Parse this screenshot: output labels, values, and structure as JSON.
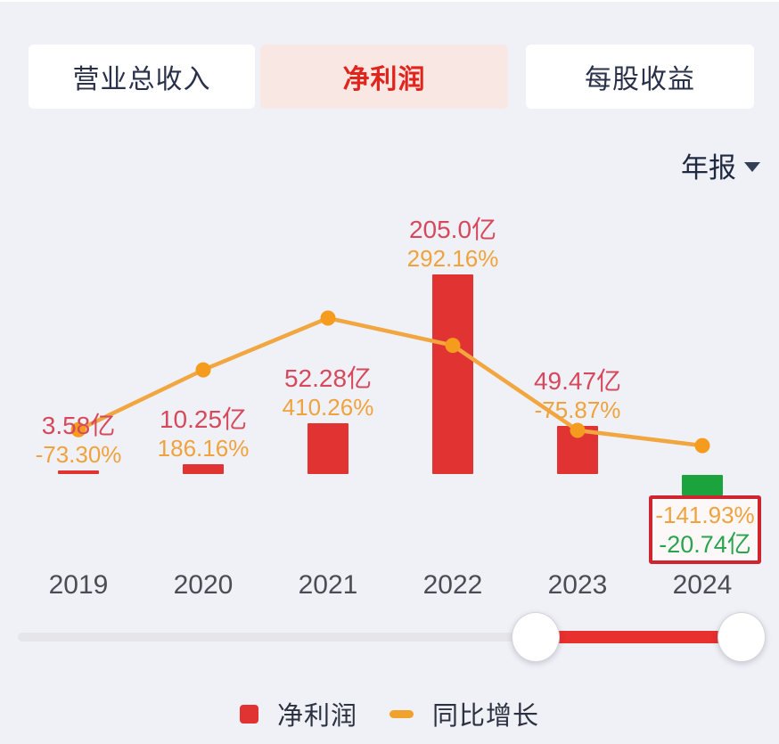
{
  "tabs": [
    {
      "label": "营业总收入",
      "active": false
    },
    {
      "label": "净利润",
      "active": true
    },
    {
      "label": "每股收益",
      "active": false
    }
  ],
  "period_selector": {
    "label": "年报"
  },
  "chart_data": {
    "type": "bar",
    "title": "净利润(年报)",
    "categories": [
      "2019",
      "2020",
      "2021",
      "2022",
      "2023",
      "2024"
    ],
    "series": [
      {
        "name": "净利润",
        "type": "bar",
        "unit": "亿",
        "values": [
          3.58,
          10.25,
          52.28,
          205.0,
          49.47,
          -20.74
        ],
        "labels": [
          "3.58亿",
          "10.25亿",
          "52.28亿",
          "205.0亿",
          "49.47亿",
          "-20.74亿"
        ]
      },
      {
        "name": "同比增长",
        "type": "line",
        "unit": "%",
        "values": [
          -73.3,
          186.16,
          410.26,
          292.16,
          -75.87,
          -141.93
        ],
        "labels": [
          "-73.30%",
          "186.16%",
          "410.26%",
          "292.16%",
          "-75.87%",
          "-141.93%"
        ]
      }
    ],
    "highlight": {
      "category": "2024",
      "pct_label": "-141.93%",
      "value_label": "-20.74亿"
    },
    "ylim_bar": [
      -25,
      210
    ],
    "ylim_pct": [
      -160,
      430
    ],
    "grid": false,
    "legend_position": "bottom",
    "colors": {
      "bar_positive": "#e23333",
      "bar_negative": "#1ba43d",
      "line": "#f1a640",
      "point": "#f59b1d",
      "value_label": "#d6495c",
      "pct_label": "#efa23d",
      "highlight_border": "#cf2531",
      "highlight_value": "#2aa44e"
    }
  },
  "legend": [
    {
      "label": "净利润"
    },
    {
      "label": "同比增长"
    }
  ]
}
